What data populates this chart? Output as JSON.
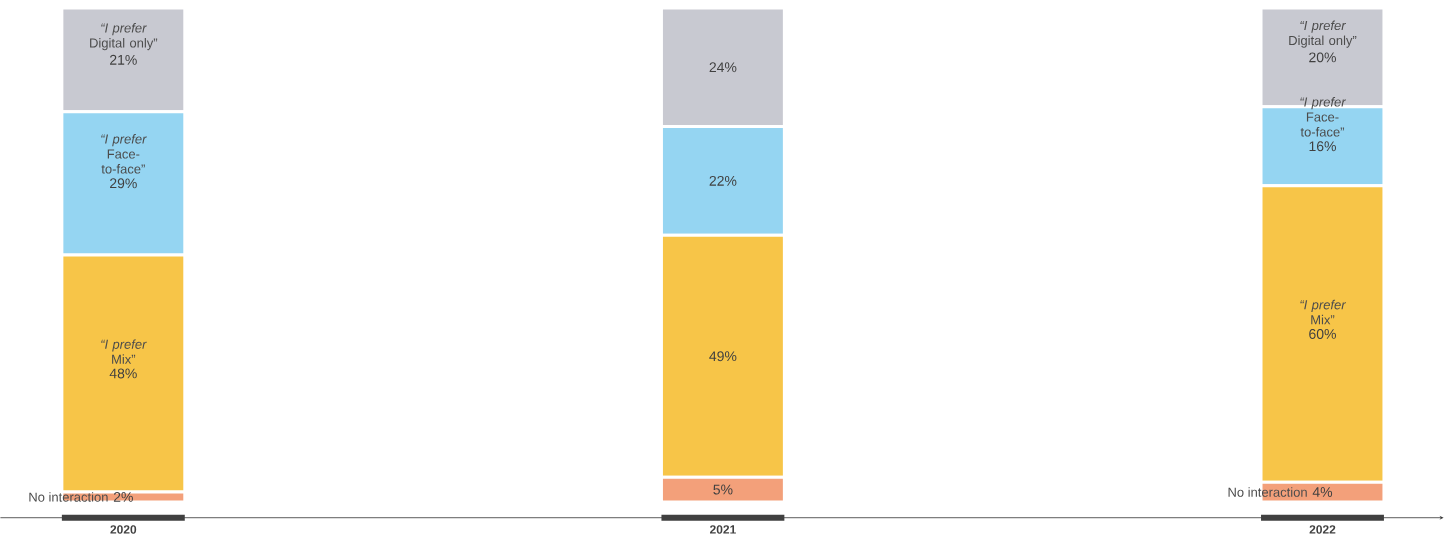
{
  "chart_data": {
    "type": "bar",
    "stacked": true,
    "categories": [
      "2020",
      "2021",
      "2022"
    ],
    "series": [
      {
        "name": "No interaction",
        "color": "#f3a07a",
        "values": [
          2,
          5,
          4
        ],
        "value_labels": [
          "2%",
          "5%",
          "4%"
        ]
      },
      {
        "name": "*“I prefer* Mix”",
        "color": "#f7c548",
        "values": [
          48,
          49,
          60
        ],
        "value_labels": [
          "48%",
          "49%",
          "60%"
        ]
      },
      {
        "name": "*“I prefer* Face-to-face”",
        "color": "#95d5f2",
        "values": [
          29,
          22,
          16
        ],
        "value_labels": [
          "29%",
          "22%",
          "16%"
        ]
      },
      {
        "name": "*“I prefer* Digital only”",
        "color": "#c8c9d1",
        "values": [
          21,
          24,
          20
        ],
        "value_labels": [
          "21%",
          "24%",
          "20%"
        ]
      }
    ]
  }
}
